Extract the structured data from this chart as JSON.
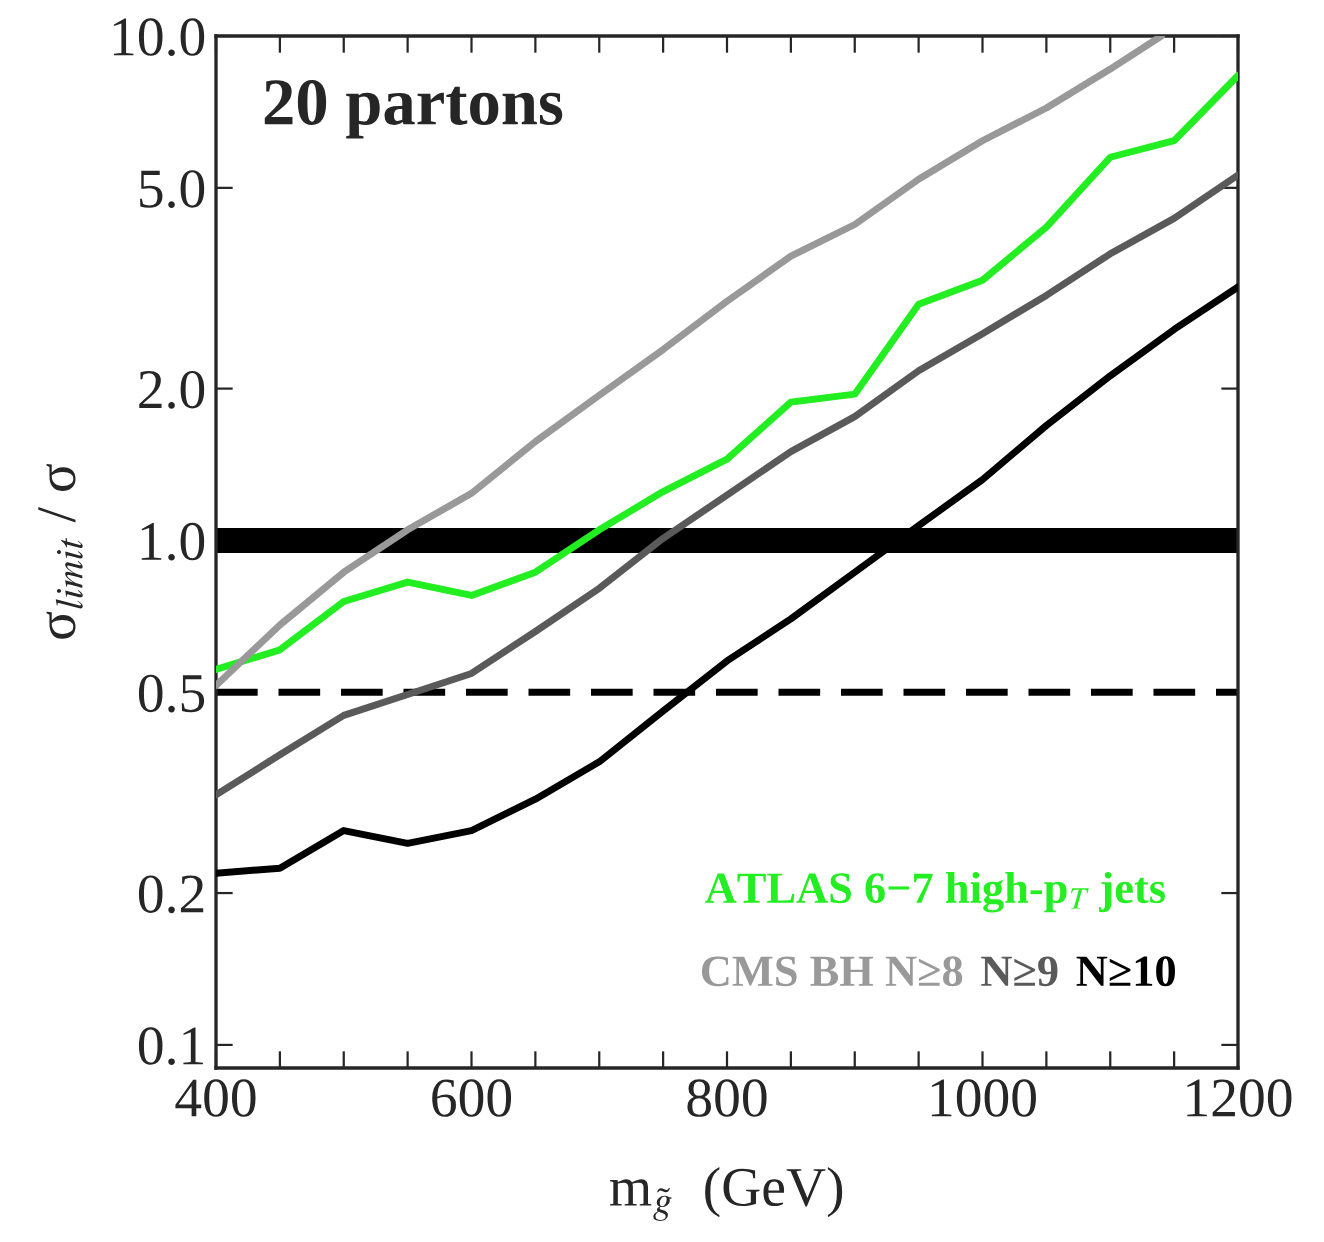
{
  "chart_data": {
    "type": "line",
    "title": "20 partons",
    "xlabel": "m$_{g̃}$  (GeV)",
    "ylabel": "σ$_{limit}$ / σ",
    "x": [
      400,
      450,
      500,
      550,
      600,
      650,
      700,
      750,
      800,
      850,
      900,
      950,
      1000,
      1050,
      1100,
      1150,
      1200
    ],
    "series": [
      {
        "name": "ATLAS 6−7 high-p$_{T}$ jets",
        "color": "#22ee22",
        "values": [
          0.555,
          0.607,
          0.757,
          0.827,
          0.778,
          0.865,
          1.05,
          1.25,
          1.45,
          1.88,
          1.95,
          2.94,
          3.28,
          4.18,
          5.75,
          6.2,
          8.35
        ]
      },
      {
        "name": "CMS BH N≥8",
        "color": "#999999",
        "x": [
          400,
          450,
          500,
          550,
          600,
          650,
          700,
          750,
          800,
          850,
          900,
          950,
          1000,
          1050,
          1100,
          1140
        ],
        "values": [
          0.516,
          0.68,
          0.865,
          1.05,
          1.24,
          1.57,
          1.94,
          2.39,
          2.98,
          3.66,
          4.23,
          5.2,
          6.2,
          7.2,
          8.6,
          10.0
        ]
      },
      {
        "name": "N≥9",
        "color": "#5a5a5a",
        "values": [
          0.313,
          0.376,
          0.45,
          0.495,
          0.545,
          0.66,
          0.804,
          1.01,
          1.23,
          1.5,
          1.76,
          2.17,
          2.57,
          3.06,
          3.7,
          4.35,
          5.3
        ]
      },
      {
        "name": "N≥10",
        "color": "#000000",
        "values": [
          0.219,
          0.224,
          0.266,
          0.251,
          0.266,
          0.307,
          0.364,
          0.459,
          0.577,
          0.699,
          0.865,
          1.07,
          1.32,
          1.69,
          2.12,
          2.62,
          3.18
        ]
      }
    ],
    "ref_lines": [
      {
        "axis": "y",
        "value": 1.0,
        "color": "#000000",
        "line_style": "solid"
      },
      {
        "axis": "y",
        "value": 0.5,
        "color": "#000000",
        "line_style": "dashed"
      }
    ],
    "log": "y",
    "xlim": [
      400,
      1200
    ],
    "ylim": [
      0.09,
      10.0
    ],
    "xticks": [
      400,
      {
        "value": 450,
        "label": null
      },
      {
        "value": 500,
        "label": null
      },
      {
        "value": 550,
        "label": null
      },
      600,
      {
        "value": 650,
        "label": null
      },
      {
        "value": 700,
        "label": null
      },
      {
        "value": 750,
        "label": null
      },
      800,
      {
        "value": 850,
        "label": null
      },
      {
        "value": 900,
        "label": null
      },
      {
        "value": 950,
        "label": null
      },
      1000,
      {
        "value": 1050,
        "label": null
      },
      {
        "value": 1100,
        "label": null
      },
      {
        "value": 1150,
        "label": null
      },
      1200
    ],
    "yticks": [
      {
        "value": 0.1,
        "label": "0.1"
      },
      {
        "value": 0.2,
        "label": "0.2"
      },
      {
        "value": 0.5,
        "label": "0.5"
      },
      {
        "value": 1.0,
        "label": "1.0"
      },
      {
        "value": 2.0,
        "label": "2.0"
      },
      {
        "value": 5.0,
        "label": "5.0"
      },
      {
        "value": 10.0,
        "label": "10.0"
      }
    ],
    "grid": false,
    "line_style": "solid",
    "marker": "none"
  }
}
